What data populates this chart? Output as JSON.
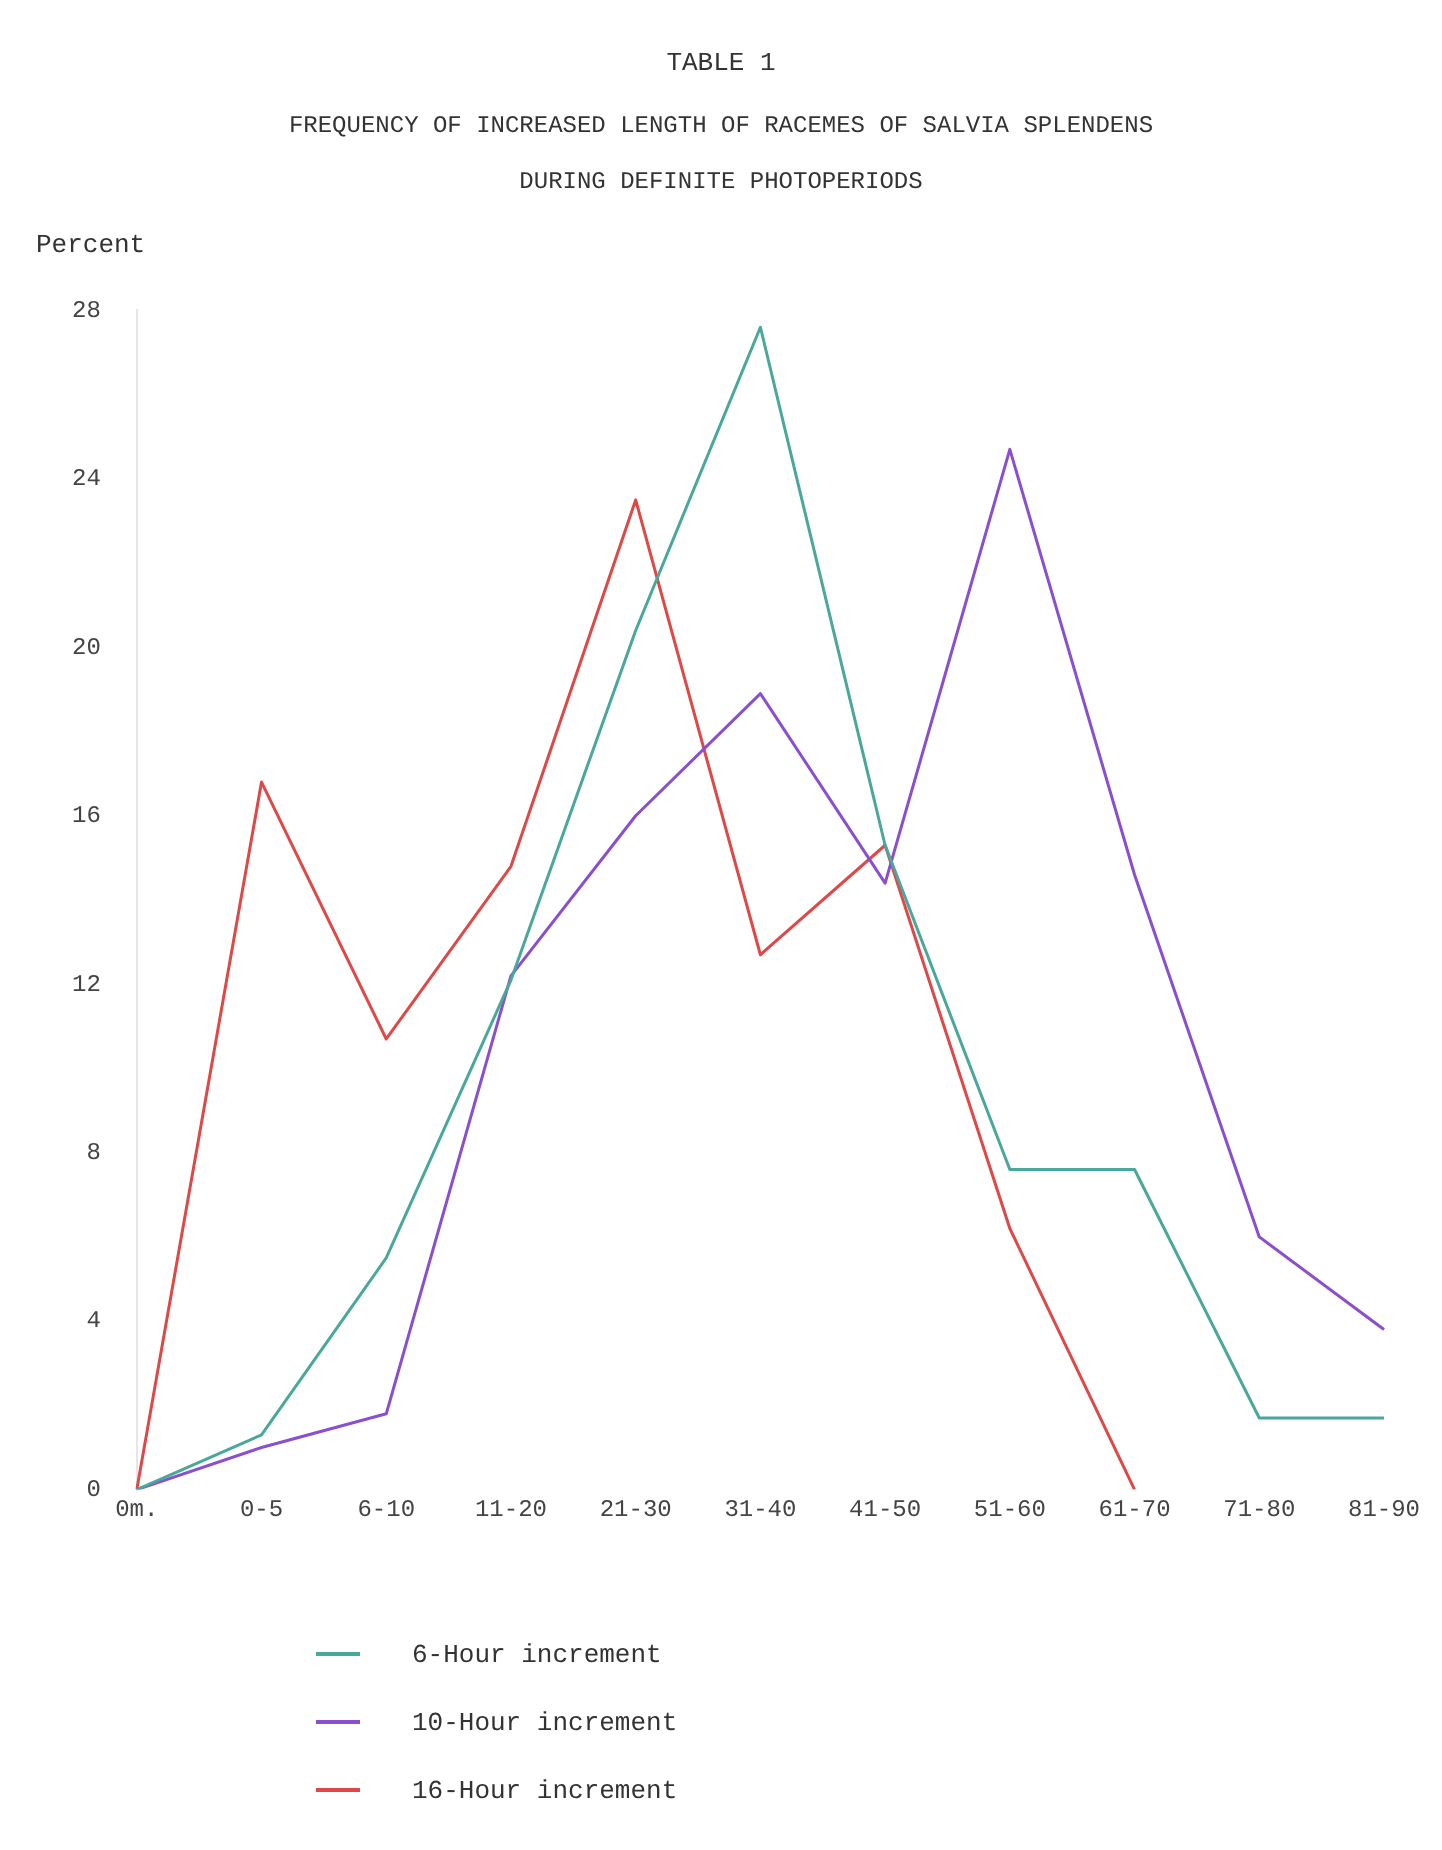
{
  "chart_data": {
    "type": "line",
    "title": "TABLE 1",
    "subtitle": "FREQUENCY OF INCREASED LENGTH OF RACEMES OF SALVIA SPLENDENS DURING DEFINITE PHOTOPERIODS",
    "ylabel": "Percent",
    "categories": [
      "0m.",
      "0-5",
      "6-10",
      "11-20",
      "21-30",
      "31-40",
      "41-50",
      "51-60",
      "61-70",
      "71-80",
      "81-90"
    ],
    "series": [
      {
        "name": "6-Hour increment",
        "color": "#4aa89a",
        "values": [
          0,
          1.3,
          5.5,
          12.1,
          20.4,
          27.6,
          15.3,
          7.6,
          7.6,
          1.7,
          1.7
        ]
      },
      {
        "name": "10-Hour increment",
        "color": "#8a4fd0",
        "values": [
          0,
          1.0,
          1.8,
          12.2,
          16,
          18.9,
          14.4,
          24.7,
          14.6,
          6.0,
          3.8
        ]
      },
      {
        "name": "16-Hour increment",
        "color": "#e04848",
        "values": [
          0,
          16.8,
          10.7,
          14.8,
          23.5,
          12.7,
          15.3,
          6.2,
          0,
          null,
          null
        ]
      }
    ],
    "ylim": [
      0,
      28
    ],
    "yticks": [
      0,
      4,
      8,
      12,
      16,
      20,
      24,
      28
    ],
    "grid": false,
    "legend": "bottom",
    "marker": "none",
    "line_style": "solid"
  }
}
